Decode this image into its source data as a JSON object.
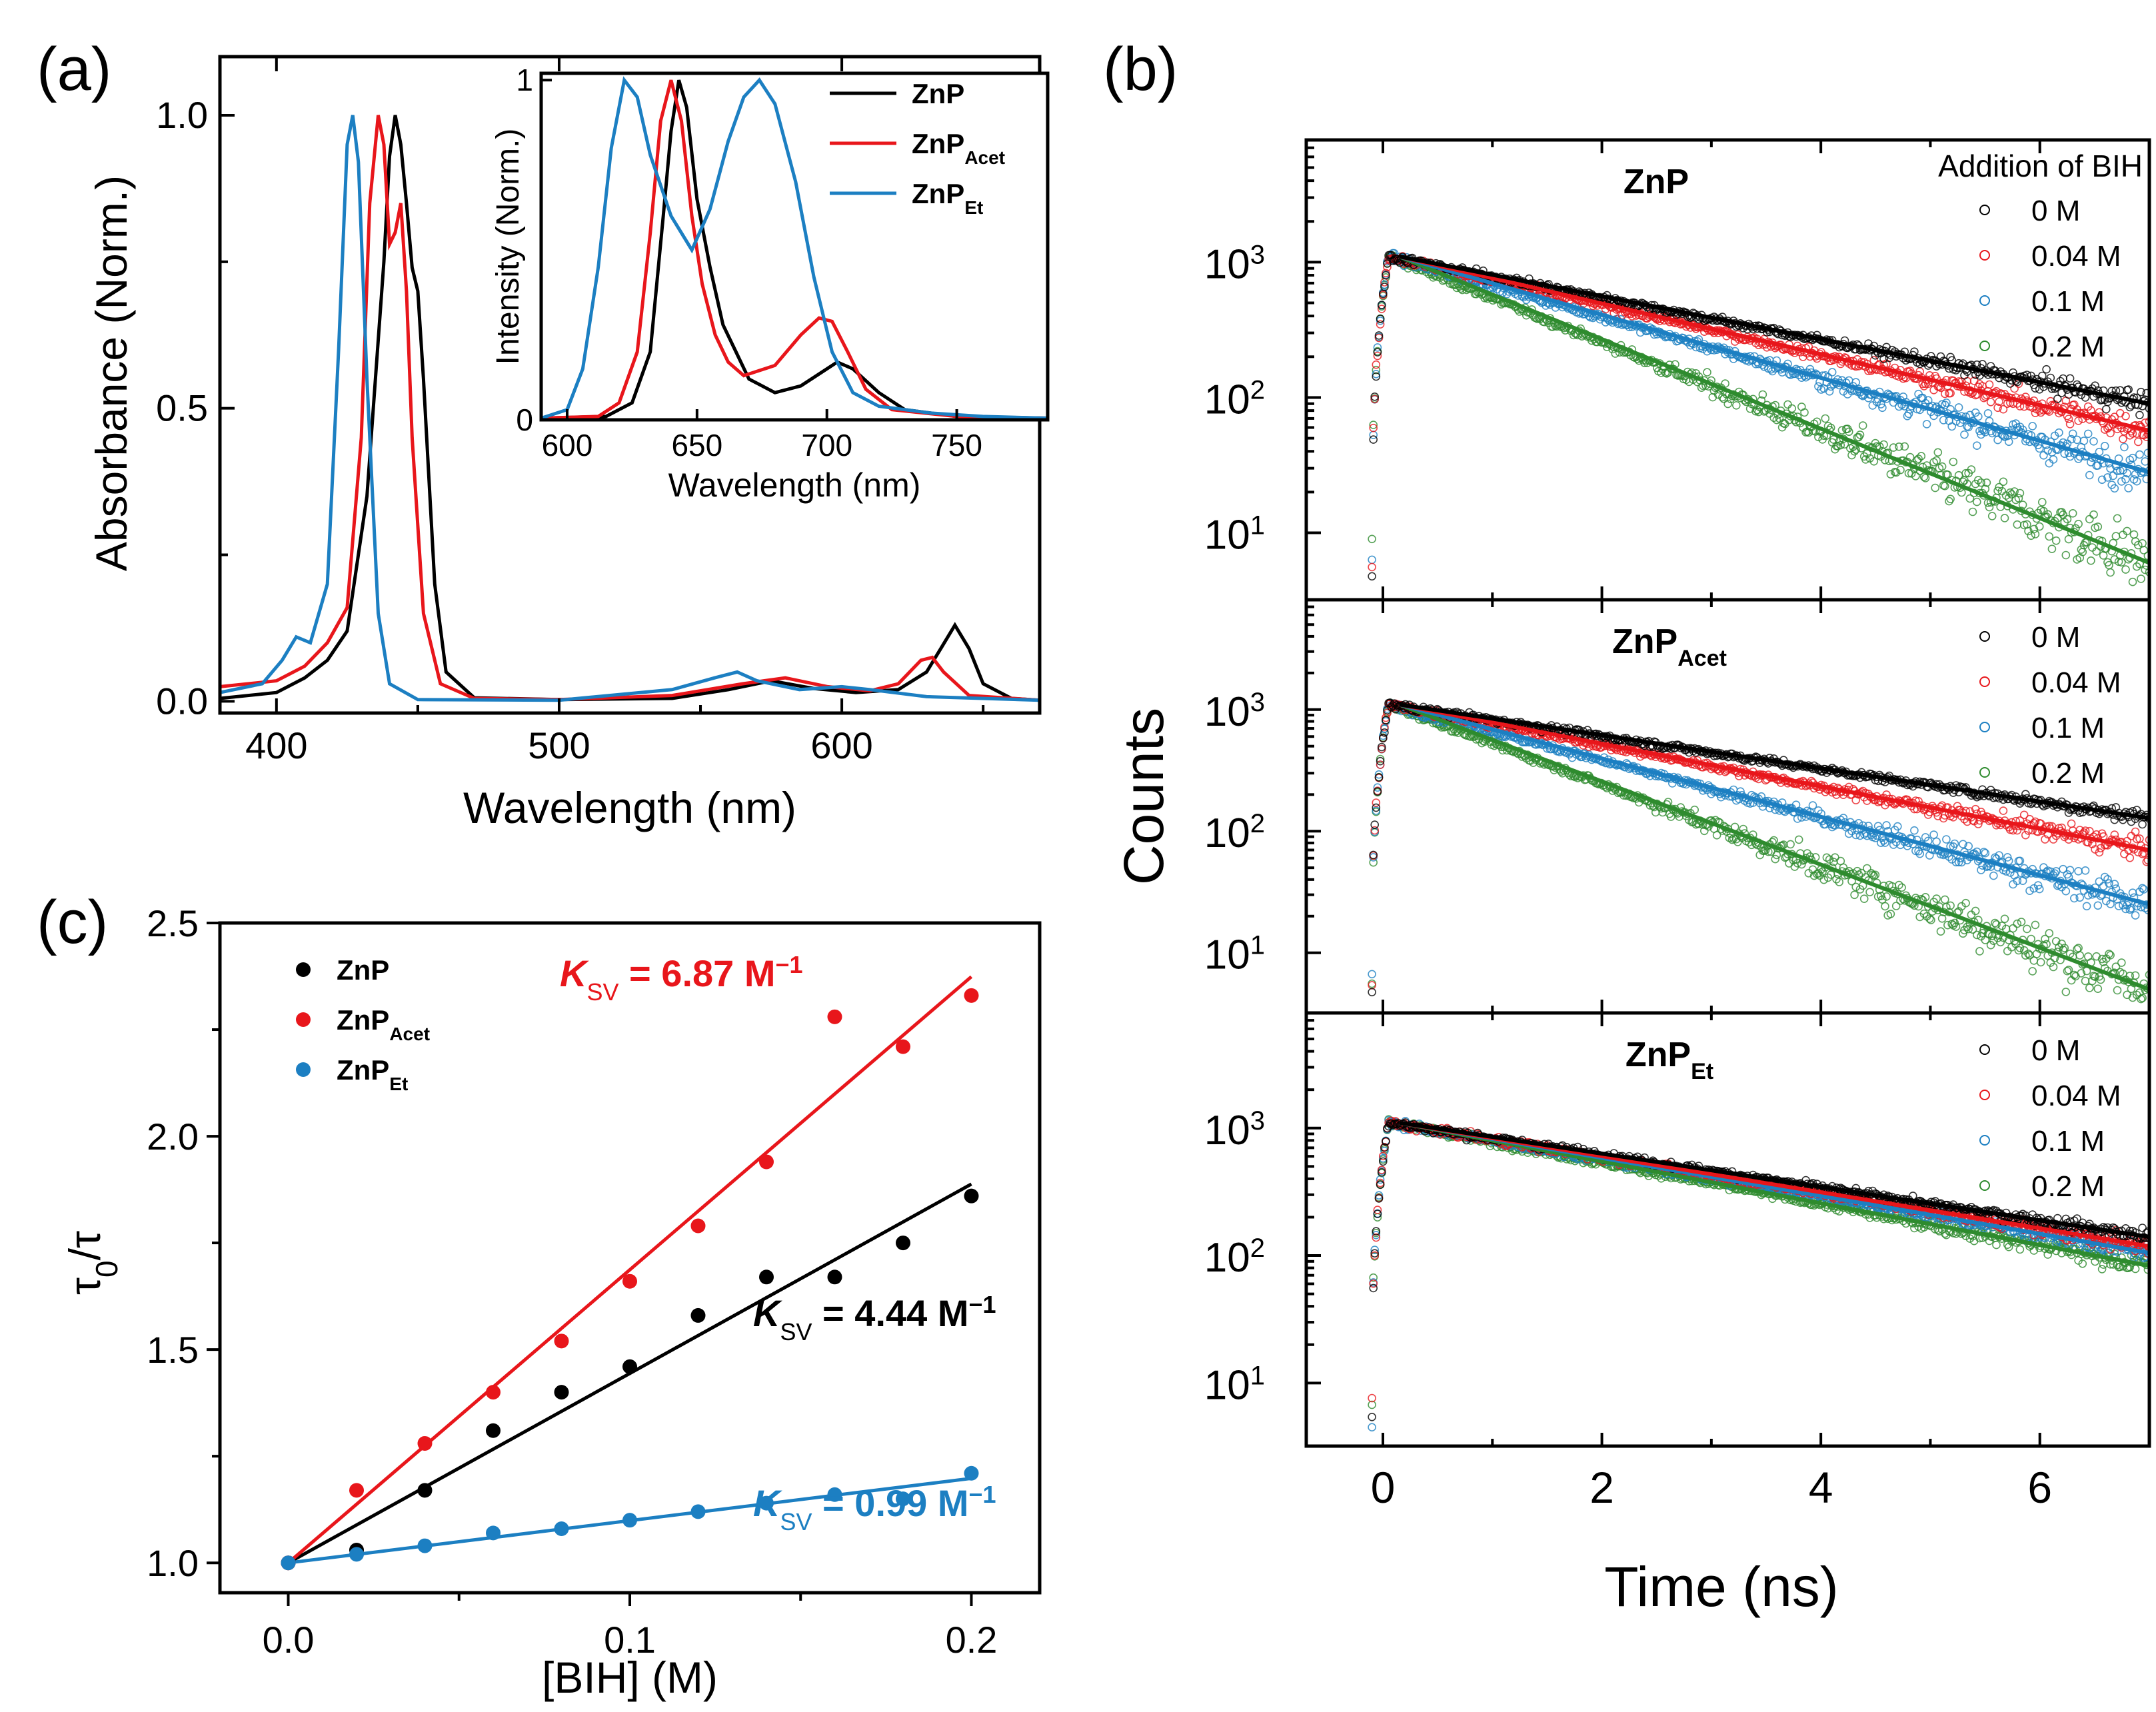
{
  "colors": {
    "ZnP": "#000000",
    "ZnP_Acet": "#e8161b",
    "ZnP_Et": "#1c7fc2",
    "green": "#2e8b2e"
  },
  "panel_labels": {
    "a": "(a)",
    "b": "(b)",
    "c": "(c)"
  },
  "chart_data": [
    {
      "id": "a-main",
      "type": "line",
      "xlabel": "Wavelength (nm)",
      "ylabel": "Absorbance (Norm.)",
      "xlim": [
        380,
        670
      ],
      "ylim": [
        -0.02,
        1.1
      ],
      "xticks": [
        400,
        500,
        600
      ],
      "yticks": [
        0.0,
        0.5,
        1.0
      ],
      "ytick_labels": [
        "0.0",
        "0.5",
        "1.0"
      ],
      "series": [
        {
          "name": "ZnP",
          "color_key": "ZnP",
          "points": [
            [
              380,
              0.005
            ],
            [
              400,
              0.015
            ],
            [
              410,
              0.04
            ],
            [
              418,
              0.07
            ],
            [
              425,
              0.12
            ],
            [
              432,
              0.35
            ],
            [
              438,
              0.75
            ],
            [
              440,
              0.93
            ],
            [
              442,
              1.0
            ],
            [
              444,
              0.95
            ],
            [
              446,
              0.85
            ],
            [
              448,
              0.74
            ],
            [
              450,
              0.7
            ],
            [
              452,
              0.55
            ],
            [
              456,
              0.2
            ],
            [
              460,
              0.05
            ],
            [
              470,
              0.006
            ],
            [
              500,
              0.003
            ],
            [
              540,
              0.005
            ],
            [
              560,
              0.02
            ],
            [
              575,
              0.035
            ],
            [
              590,
              0.022
            ],
            [
              605,
              0.015
            ],
            [
              620,
              0.02
            ],
            [
              630,
              0.05
            ],
            [
              635,
              0.09
            ],
            [
              640,
              0.13
            ],
            [
              645,
              0.09
            ],
            [
              650,
              0.03
            ],
            [
              660,
              0.005
            ],
            [
              670,
              0.002
            ]
          ]
        },
        {
          "name": "ZnP_Acet",
          "color_key": "ZnP_Acet",
          "points": [
            [
              380,
              0.025
            ],
            [
              400,
              0.035
            ],
            [
              410,
              0.06
            ],
            [
              418,
              0.1
            ],
            [
              425,
              0.16
            ],
            [
              430,
              0.45
            ],
            [
              433,
              0.85
            ],
            [
              436,
              1.0
            ],
            [
              438,
              0.95
            ],
            [
              440,
              0.78
            ],
            [
              442,
              0.8
            ],
            [
              444,
              0.85
            ],
            [
              446,
              0.7
            ],
            [
              448,
              0.45
            ],
            [
              452,
              0.15
            ],
            [
              458,
              0.03
            ],
            [
              470,
              0.005
            ],
            [
              500,
              0.003
            ],
            [
              540,
              0.01
            ],
            [
              565,
              0.03
            ],
            [
              580,
              0.04
            ],
            [
              595,
              0.025
            ],
            [
              610,
              0.018
            ],
            [
              620,
              0.03
            ],
            [
              628,
              0.07
            ],
            [
              632,
              0.075
            ],
            [
              636,
              0.05
            ],
            [
              645,
              0.01
            ],
            [
              670,
              0.002
            ]
          ]
        },
        {
          "name": "ZnP_Et",
          "color_key": "ZnP_Et",
          "points": [
            [
              380,
              0.015
            ],
            [
              395,
              0.03
            ],
            [
              402,
              0.07
            ],
            [
              407,
              0.11
            ],
            [
              412,
              0.1
            ],
            [
              418,
              0.2
            ],
            [
              422,
              0.6
            ],
            [
              425,
              0.95
            ],
            [
              427,
              1.0
            ],
            [
              429,
              0.92
            ],
            [
              432,
              0.55
            ],
            [
              436,
              0.15
            ],
            [
              440,
              0.03
            ],
            [
              450,
              0.003
            ],
            [
              500,
              0.002
            ],
            [
              540,
              0.02
            ],
            [
              555,
              0.04
            ],
            [
              563,
              0.05
            ],
            [
              570,
              0.035
            ],
            [
              585,
              0.02
            ],
            [
              600,
              0.025
            ],
            [
              610,
              0.02
            ],
            [
              630,
              0.008
            ],
            [
              670,
              0.002
            ]
          ]
        }
      ]
    },
    {
      "id": "a-inset",
      "type": "line",
      "xlabel": "Wavelength (nm)",
      "ylabel": "Intensity (Norm.)",
      "xlim": [
        590,
        785
      ],
      "ylim": [
        0,
        1.02
      ],
      "xticks": [
        600,
        650,
        700,
        750
      ],
      "yticks": [
        0,
        1
      ],
      "ytick_labels": [
        "0",
        "1"
      ],
      "legend": {
        "placement": "top-right",
        "entries": [
          {
            "base": "ZnP",
            "sub": "",
            "color_key": "ZnP"
          },
          {
            "base": "ZnP",
            "sub": "Acet",
            "color_key": "ZnP_Acet"
          },
          {
            "base": "ZnP",
            "sub": "Et",
            "color_key": "ZnP_Et"
          }
        ]
      },
      "series": [
        {
          "name": "ZnP",
          "color_key": "ZnP",
          "points": [
            [
              590,
              0.005
            ],
            [
              615,
              0.01
            ],
            [
              625,
              0.05
            ],
            [
              632,
              0.2
            ],
            [
              637,
              0.6
            ],
            [
              640,
              0.85
            ],
            [
              643,
              1.0
            ],
            [
              646,
              0.92
            ],
            [
              650,
              0.65
            ],
            [
              655,
              0.45
            ],
            [
              660,
              0.28
            ],
            [
              665,
              0.2
            ],
            [
              670,
              0.12
            ],
            [
              680,
              0.08
            ],
            [
              690,
              0.1
            ],
            [
              698,
              0.14
            ],
            [
              704,
              0.17
            ],
            [
              710,
              0.15
            ],
            [
              720,
              0.08
            ],
            [
              730,
              0.03
            ],
            [
              750,
              0.01
            ],
            [
              785,
              0.005
            ]
          ]
        },
        {
          "name": "ZnP_Acet",
          "color_key": "ZnP_Acet",
          "points": [
            [
              590,
              0.005
            ],
            [
              612,
              0.01
            ],
            [
              620,
              0.05
            ],
            [
              627,
              0.2
            ],
            [
              632,
              0.55
            ],
            [
              636,
              0.88
            ],
            [
              640,
              1.0
            ],
            [
              644,
              0.88
            ],
            [
              648,
              0.6
            ],
            [
              652,
              0.4
            ],
            [
              657,
              0.25
            ],
            [
              662,
              0.17
            ],
            [
              668,
              0.13
            ],
            [
              680,
              0.16
            ],
            [
              690,
              0.25
            ],
            [
              697,
              0.3
            ],
            [
              702,
              0.29
            ],
            [
              708,
              0.2
            ],
            [
              715,
              0.09
            ],
            [
              725,
              0.03
            ],
            [
              750,
              0.01
            ],
            [
              785,
              0.005
            ]
          ]
        },
        {
          "name": "ZnP_Et",
          "color_key": "ZnP_Et",
          "points": [
            [
              590,
              0.005
            ],
            [
              600,
              0.03
            ],
            [
              606,
              0.15
            ],
            [
              612,
              0.45
            ],
            [
              617,
              0.8
            ],
            [
              622,
              1.0
            ],
            [
              627,
              0.95
            ],
            [
              632,
              0.78
            ],
            [
              640,
              0.6
            ],
            [
              648,
              0.5
            ],
            [
              655,
              0.62
            ],
            [
              662,
              0.82
            ],
            [
              668,
              0.95
            ],
            [
              674,
              1.0
            ],
            [
              680,
              0.93
            ],
            [
              688,
              0.7
            ],
            [
              695,
              0.42
            ],
            [
              702,
              0.2
            ],
            [
              710,
              0.08
            ],
            [
              720,
              0.04
            ],
            [
              740,
              0.02
            ],
            [
              760,
              0.01
            ],
            [
              785,
              0.005
            ]
          ]
        }
      ]
    },
    {
      "id": "b",
      "type": "scatter",
      "xlabel": "Time (ns)",
      "ylabel": "Counts",
      "xlim": [
        -0.7,
        7.0
      ],
      "xticks": [
        0,
        2,
        4,
        6
      ],
      "yscale": "log",
      "ylim": [
        3.2,
        8000
      ],
      "ytick_decades": [
        1,
        2,
        3
      ],
      "legend_title": "Addition of BIH",
      "legend_entries": [
        "0 M",
        "0.04 M",
        "0.1 M",
        "0.2 M"
      ],
      "concentrations_M": [
        0,
        0.04,
        0.1,
        0.2
      ],
      "peak_counts": 1100,
      "rise_start_ns": -0.1,
      "peak_time_ns": 0.05,
      "subpanels": [
        {
          "title_base": "ZnP",
          "title_sub": "",
          "fit_end_counts": [
            90,
            57,
            28,
            6
          ]
        },
        {
          "title_base": "ZnP",
          "title_sub": "Acet",
          "fit_end_counts": [
            128,
            70,
            25,
            5
          ]
        },
        {
          "title_base": "ZnP",
          "title_sub": "Et",
          "fit_end_counts": [
            140,
            118,
            105,
            83
          ]
        }
      ],
      "series_color_keys": [
        "ZnP",
        "ZnP_Acet",
        "ZnP_Et",
        "green"
      ]
    },
    {
      "id": "c",
      "type": "scatter",
      "xlabel": "[BIH] (M)",
      "ylabel_base": "τ",
      "ylabel_sub": "0",
      "ylabel_tail": "/τ",
      "xlim": [
        -0.02,
        0.22
      ],
      "ylim": [
        0.93,
        2.5
      ],
      "xticks": [
        0.0,
        0.1,
        0.2
      ],
      "xtick_labels": [
        "0.0",
        "0.1",
        "0.2"
      ],
      "yticks": [
        1.0,
        1.5,
        2.0,
        2.5
      ],
      "ytick_labels": [
        "1.0",
        "1.5",
        "2.0",
        "2.5"
      ],
      "x": [
        0,
        0.02,
        0.04,
        0.06,
        0.08,
        0.1,
        0.12,
        0.14,
        0.16,
        0.18,
        0.2
      ],
      "series": [
        {
          "name": "ZnP",
          "sub": "",
          "color_key": "ZnP",
          "ksv": 4.44,
          "values": [
            1.0,
            1.03,
            1.17,
            1.31,
            1.4,
            1.46,
            1.58,
            1.67,
            1.67,
            1.75,
            1.86
          ]
        },
        {
          "name": "ZnP",
          "sub": "Acet",
          "color_key": "ZnP_Acet",
          "ksv": 6.87,
          "values": [
            1.0,
            1.17,
            1.28,
            1.4,
            1.52,
            1.66,
            1.79,
            1.94,
            2.28,
            2.21,
            2.33
          ]
        },
        {
          "name": "ZnP",
          "sub": "Et",
          "color_key": "ZnP_Et",
          "ksv": 0.99,
          "values": [
            1.0,
            1.02,
            1.04,
            1.07,
            1.08,
            1.1,
            1.12,
            1.14,
            1.16,
            1.15,
            1.21
          ]
        }
      ],
      "ksv_labels": [
        {
          "series": 1,
          "K": "K",
          "sv": "SV",
          "text": " = 6.87 M",
          "exp": "−1"
        },
        {
          "series": 0,
          "K": "K",
          "sv": "SV",
          "text": " = 4.44 M",
          "exp": "−1"
        },
        {
          "series": 2,
          "K": "K",
          "sv": "SV",
          "text": " = 0.99 M",
          "exp": "−1"
        }
      ]
    }
  ]
}
